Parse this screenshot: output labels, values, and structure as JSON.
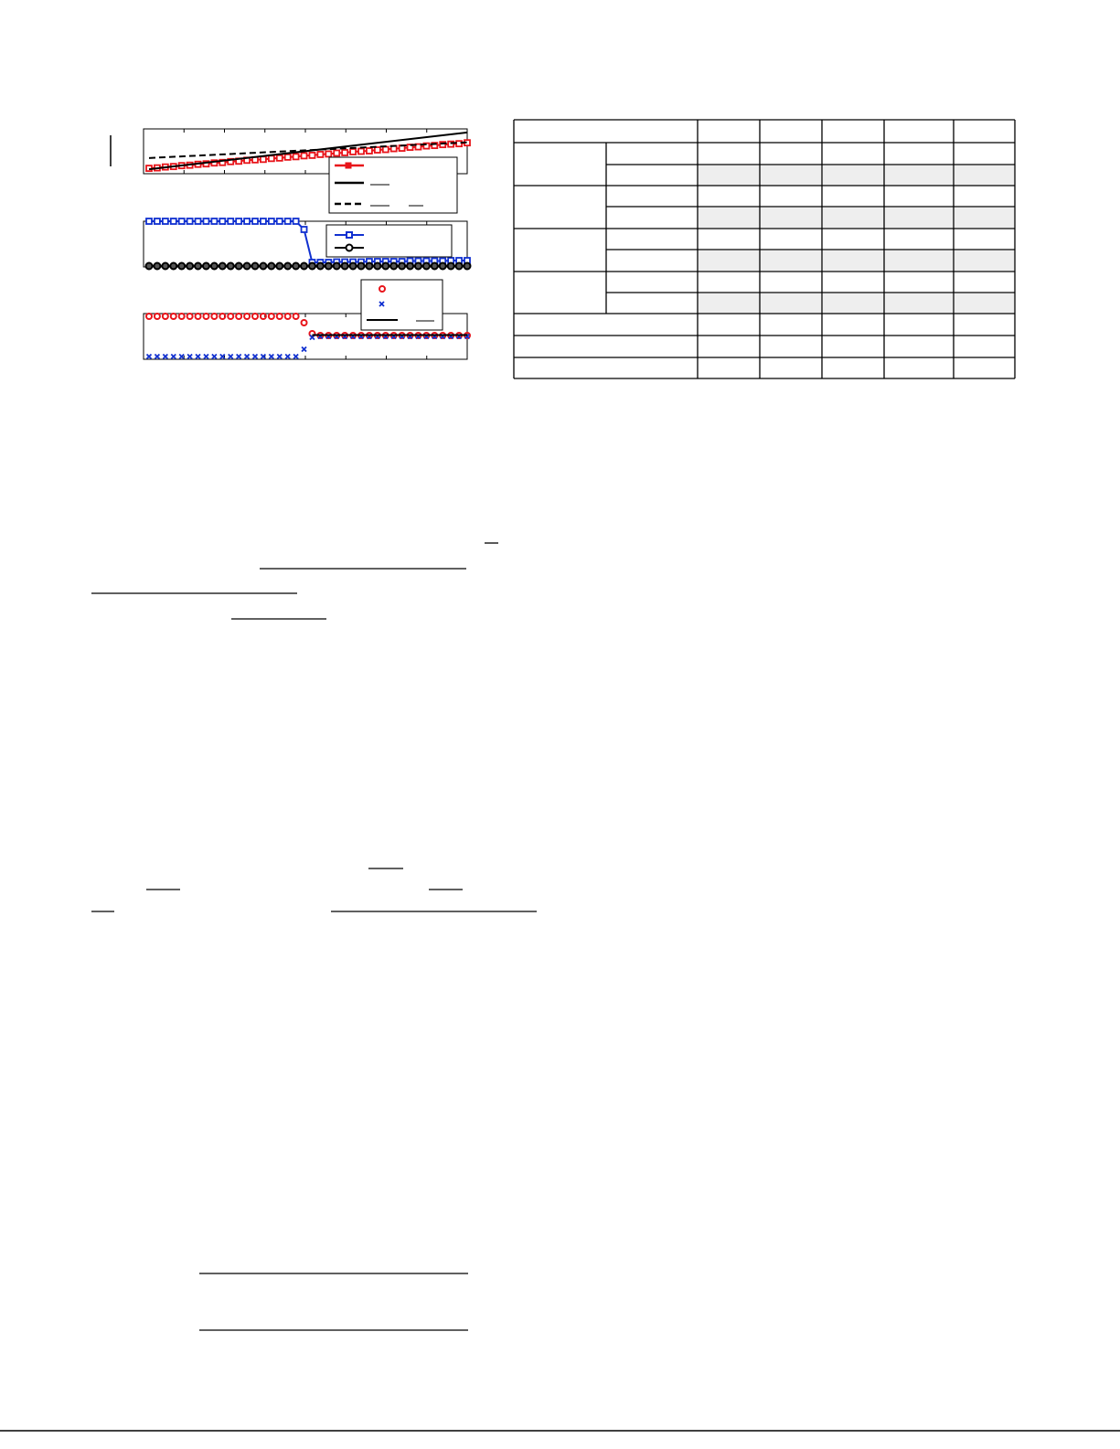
{
  "chart_data": [
    {
      "type": "line",
      "xlim": [
        0,
        39
      ],
      "ylim": [
        0,
        1
      ],
      "series": [
        {
          "color": "#e8141a",
          "marker": "square",
          "line": "solid",
          "values": [
            0.12,
            0.13,
            0.15,
            0.16,
            0.18,
            0.19,
            0.21,
            0.22,
            0.24,
            0.25,
            0.27,
            0.28,
            0.3,
            0.31,
            0.32,
            0.34,
            0.35,
            0.37,
            0.38,
            0.4,
            0.41,
            0.43,
            0.44,
            0.46,
            0.47,
            0.49,
            0.5,
            0.51,
            0.53,
            0.54,
            0.56,
            0.57,
            0.59,
            0.6,
            0.62,
            0.63,
            0.65,
            0.66,
            0.67,
            0.69
          ]
        },
        {
          "color": "#000000",
          "marker": "none",
          "line": "solid",
          "x": [
            0,
            39
          ],
          "values": [
            0.1,
            0.92
          ]
        },
        {
          "color": "#000000",
          "marker": "none",
          "line": "dash",
          "x": [
            0,
            39
          ],
          "values": [
            0.35,
            0.7
          ]
        }
      ]
    },
    {
      "type": "line",
      "xlim": [
        0,
        39
      ],
      "ylim": [
        0,
        1
      ],
      "series": [
        {
          "color": "#1030d0",
          "marker": "square",
          "line": "solid",
          "values": [
            1,
            1,
            1,
            1,
            1,
            1,
            1,
            1,
            1,
            1,
            1,
            1,
            1,
            1,
            1,
            1,
            1,
            1,
            1,
            0.82,
            0.1,
            0.1,
            0.1,
            0.11,
            0.11,
            0.11,
            0.11,
            0.12,
            0.12,
            0.12,
            0.12,
            0.12,
            0.13,
            0.13,
            0.13,
            0.13,
            0.13,
            0.14,
            0.14,
            0.14
          ]
        },
        {
          "color": "#000000",
          "marker": "circle",
          "line": "solid",
          "values": [
            0.02,
            0.02,
            0.02,
            0.02,
            0.02,
            0.02,
            0.02,
            0.02,
            0.02,
            0.02,
            0.02,
            0.02,
            0.02,
            0.02,
            0.02,
            0.02,
            0.02,
            0.02,
            0.02,
            0.02,
            0.02,
            0.02,
            0.02,
            0.02,
            0.02,
            0.02,
            0.02,
            0.02,
            0.02,
            0.02,
            0.02,
            0.02,
            0.02,
            0.02,
            0.02,
            0.02,
            0.02,
            0.02,
            0.02,
            0.02
          ]
        }
      ]
    },
    {
      "type": "line",
      "xlim": [
        0,
        39
      ],
      "ylim": [
        0,
        1
      ],
      "series": [
        {
          "color": "#e8141a",
          "marker": "circle-open",
          "line": "none",
          "values": [
            0.94,
            0.94,
            0.94,
            0.94,
            0.94,
            0.94,
            0.94,
            0.94,
            0.94,
            0.94,
            0.94,
            0.94,
            0.94,
            0.94,
            0.94,
            0.94,
            0.94,
            0.94,
            0.94,
            0.8,
            0.56,
            0.52,
            0.52,
            0.52,
            0.52,
            0.52,
            0.52,
            0.52,
            0.52,
            0.52,
            0.52,
            0.52,
            0.52,
            0.52,
            0.52,
            0.52,
            0.52,
            0.52,
            0.52,
            0.52
          ]
        },
        {
          "color": "#1030d0",
          "marker": "x",
          "line": "none",
          "values": [
            0.06,
            0.06,
            0.06,
            0.06,
            0.06,
            0.06,
            0.06,
            0.06,
            0.06,
            0.06,
            0.06,
            0.06,
            0.06,
            0.06,
            0.06,
            0.06,
            0.06,
            0.06,
            0.06,
            0.22,
            0.48,
            0.5,
            0.5,
            0.5,
            0.5,
            0.5,
            0.5,
            0.5,
            0.5,
            0.5,
            0.5,
            0.5,
            0.5,
            0.5,
            0.5,
            0.5,
            0.5,
            0.5,
            0.5,
            0.5
          ]
        },
        {
          "color": "#000000",
          "marker": "none",
          "line": "solid",
          "x": [
            20,
            39
          ],
          "values": [
            0.53,
            0.53
          ]
        }
      ]
    }
  ]
}
